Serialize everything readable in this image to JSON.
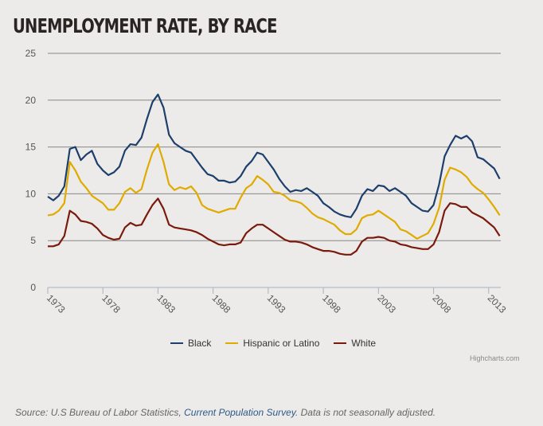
{
  "title": "UNEMPLOYMENT RATE, BY RACE",
  "legend": [
    {
      "name": "Black",
      "color": "#1c3f6b"
    },
    {
      "name": "Hispanic or Latino",
      "color": "#e0ab00"
    },
    {
      "name": "White",
      "color": "#7a1a0c"
    }
  ],
  "credits": "Highcharts.com",
  "source": {
    "prefix": "Source: U.S Bureau of Labor Statistics, ",
    "link_text": "Current Population Survey",
    "suffix": ". Data is not seasonally adjusted."
  },
  "chart_data": {
    "type": "line",
    "title": "UNEMPLOYMENT RATE, BY RACE",
    "xlabel": "",
    "ylabel": "",
    "ylim": [
      0,
      25
    ],
    "yticks": [
      0,
      5,
      10,
      15,
      20,
      25
    ],
    "xlim": [
      1973,
      2014.1
    ],
    "xticks": [
      1973,
      1978,
      1983,
      1988,
      1993,
      1998,
      2003,
      2008,
      2013
    ],
    "grid": true,
    "legend_position": "bottom-center",
    "x": [
      1973.0,
      1973.5,
      1974.0,
      1974.5,
      1975.0,
      1975.5,
      1976.0,
      1976.5,
      1977.0,
      1977.5,
      1978.0,
      1978.5,
      1979.0,
      1979.5,
      1980.0,
      1980.5,
      1981.0,
      1981.5,
      1982.0,
      1982.5,
      1983.0,
      1983.5,
      1984.0,
      1984.5,
      1985.0,
      1985.5,
      1986.0,
      1986.5,
      1987.0,
      1987.5,
      1988.0,
      1988.5,
      1989.0,
      1989.5,
      1990.0,
      1990.5,
      1991.0,
      1991.5,
      1992.0,
      1992.5,
      1993.0,
      1993.5,
      1994.0,
      1994.5,
      1995.0,
      1995.5,
      1996.0,
      1996.5,
      1997.0,
      1997.5,
      1998.0,
      1998.5,
      1999.0,
      1999.5,
      2000.0,
      2000.5,
      2001.0,
      2001.5,
      2002.0,
      2002.5,
      2003.0,
      2003.5,
      2004.0,
      2004.5,
      2005.0,
      2005.5,
      2006.0,
      2006.5,
      2007.0,
      2007.5,
      2008.0,
      2008.5,
      2009.0,
      2009.5,
      2010.0,
      2010.5,
      2011.0,
      2011.5,
      2012.0,
      2012.5,
      2013.0,
      2013.5,
      2014.0
    ],
    "series": [
      {
        "name": "Black",
        "color": "#1c3f6b",
        "values": [
          9.7,
          9.3,
          9.8,
          10.8,
          14.8,
          15.0,
          13.6,
          14.2,
          14.6,
          13.2,
          12.5,
          12.0,
          12.3,
          12.9,
          14.6,
          15.3,
          15.2,
          16.0,
          18.0,
          19.8,
          20.6,
          19.2,
          16.3,
          15.4,
          15.0,
          14.6,
          14.4,
          13.6,
          12.8,
          12.1,
          11.9,
          11.4,
          11.4,
          11.2,
          11.3,
          11.9,
          12.9,
          13.5,
          14.4,
          14.2,
          13.4,
          12.6,
          11.6,
          10.8,
          10.2,
          10.4,
          10.3,
          10.6,
          10.2,
          9.8,
          9.0,
          8.6,
          8.1,
          7.8,
          7.6,
          7.5,
          8.4,
          9.8,
          10.5,
          10.3,
          10.9,
          10.8,
          10.3,
          10.6,
          10.2,
          9.8,
          9.0,
          8.6,
          8.2,
          8.1,
          8.8,
          11.0,
          14.0,
          15.2,
          16.2,
          15.9,
          16.2,
          15.6,
          13.9,
          13.7,
          13.2,
          12.7,
          11.6
        ]
      },
      {
        "name": "Hispanic or Latino",
        "color": "#e0ab00",
        "values": [
          7.7,
          7.8,
          8.2,
          9.0,
          13.4,
          12.5,
          11.3,
          10.6,
          9.8,
          9.4,
          9.0,
          8.3,
          8.3,
          9.0,
          10.2,
          10.6,
          10.1,
          10.5,
          12.6,
          14.4,
          15.3,
          13.4,
          11.0,
          10.4,
          10.7,
          10.5,
          10.8,
          10.1,
          8.8,
          8.4,
          8.2,
          8.0,
          8.2,
          8.4,
          8.4,
          9.6,
          10.6,
          11.0,
          11.9,
          11.5,
          11.0,
          10.2,
          10.1,
          9.8,
          9.3,
          9.2,
          9.0,
          8.5,
          7.9,
          7.5,
          7.3,
          7.0,
          6.7,
          6.1,
          5.7,
          5.7,
          6.2,
          7.4,
          7.7,
          7.8,
          8.2,
          7.8,
          7.4,
          7.0,
          6.2,
          6.0,
          5.6,
          5.2,
          5.5,
          5.8,
          6.8,
          8.5,
          11.5,
          12.8,
          12.6,
          12.3,
          11.8,
          11.0,
          10.5,
          10.1,
          9.4,
          8.6,
          7.7
        ]
      },
      {
        "name": "White",
        "color": "#7a1a0c",
        "values": [
          4.4,
          4.4,
          4.6,
          5.5,
          8.2,
          7.8,
          7.1,
          7.0,
          6.8,
          6.3,
          5.6,
          5.3,
          5.1,
          5.2,
          6.4,
          6.9,
          6.6,
          6.7,
          7.8,
          8.8,
          9.5,
          8.4,
          6.7,
          6.4,
          6.3,
          6.2,
          6.1,
          5.9,
          5.6,
          5.2,
          4.9,
          4.6,
          4.5,
          4.6,
          4.6,
          4.8,
          5.8,
          6.3,
          6.7,
          6.7,
          6.3,
          5.9,
          5.5,
          5.1,
          4.9,
          4.9,
          4.8,
          4.6,
          4.3,
          4.1,
          3.9,
          3.9,
          3.8,
          3.6,
          3.5,
          3.5,
          3.9,
          4.9,
          5.3,
          5.3,
          5.4,
          5.3,
          5.0,
          4.9,
          4.6,
          4.5,
          4.3,
          4.2,
          4.1,
          4.1,
          4.6,
          5.9,
          8.2,
          9.0,
          8.9,
          8.6,
          8.6,
          8.0,
          7.7,
          7.4,
          6.9,
          6.4,
          5.5
        ]
      }
    ]
  }
}
